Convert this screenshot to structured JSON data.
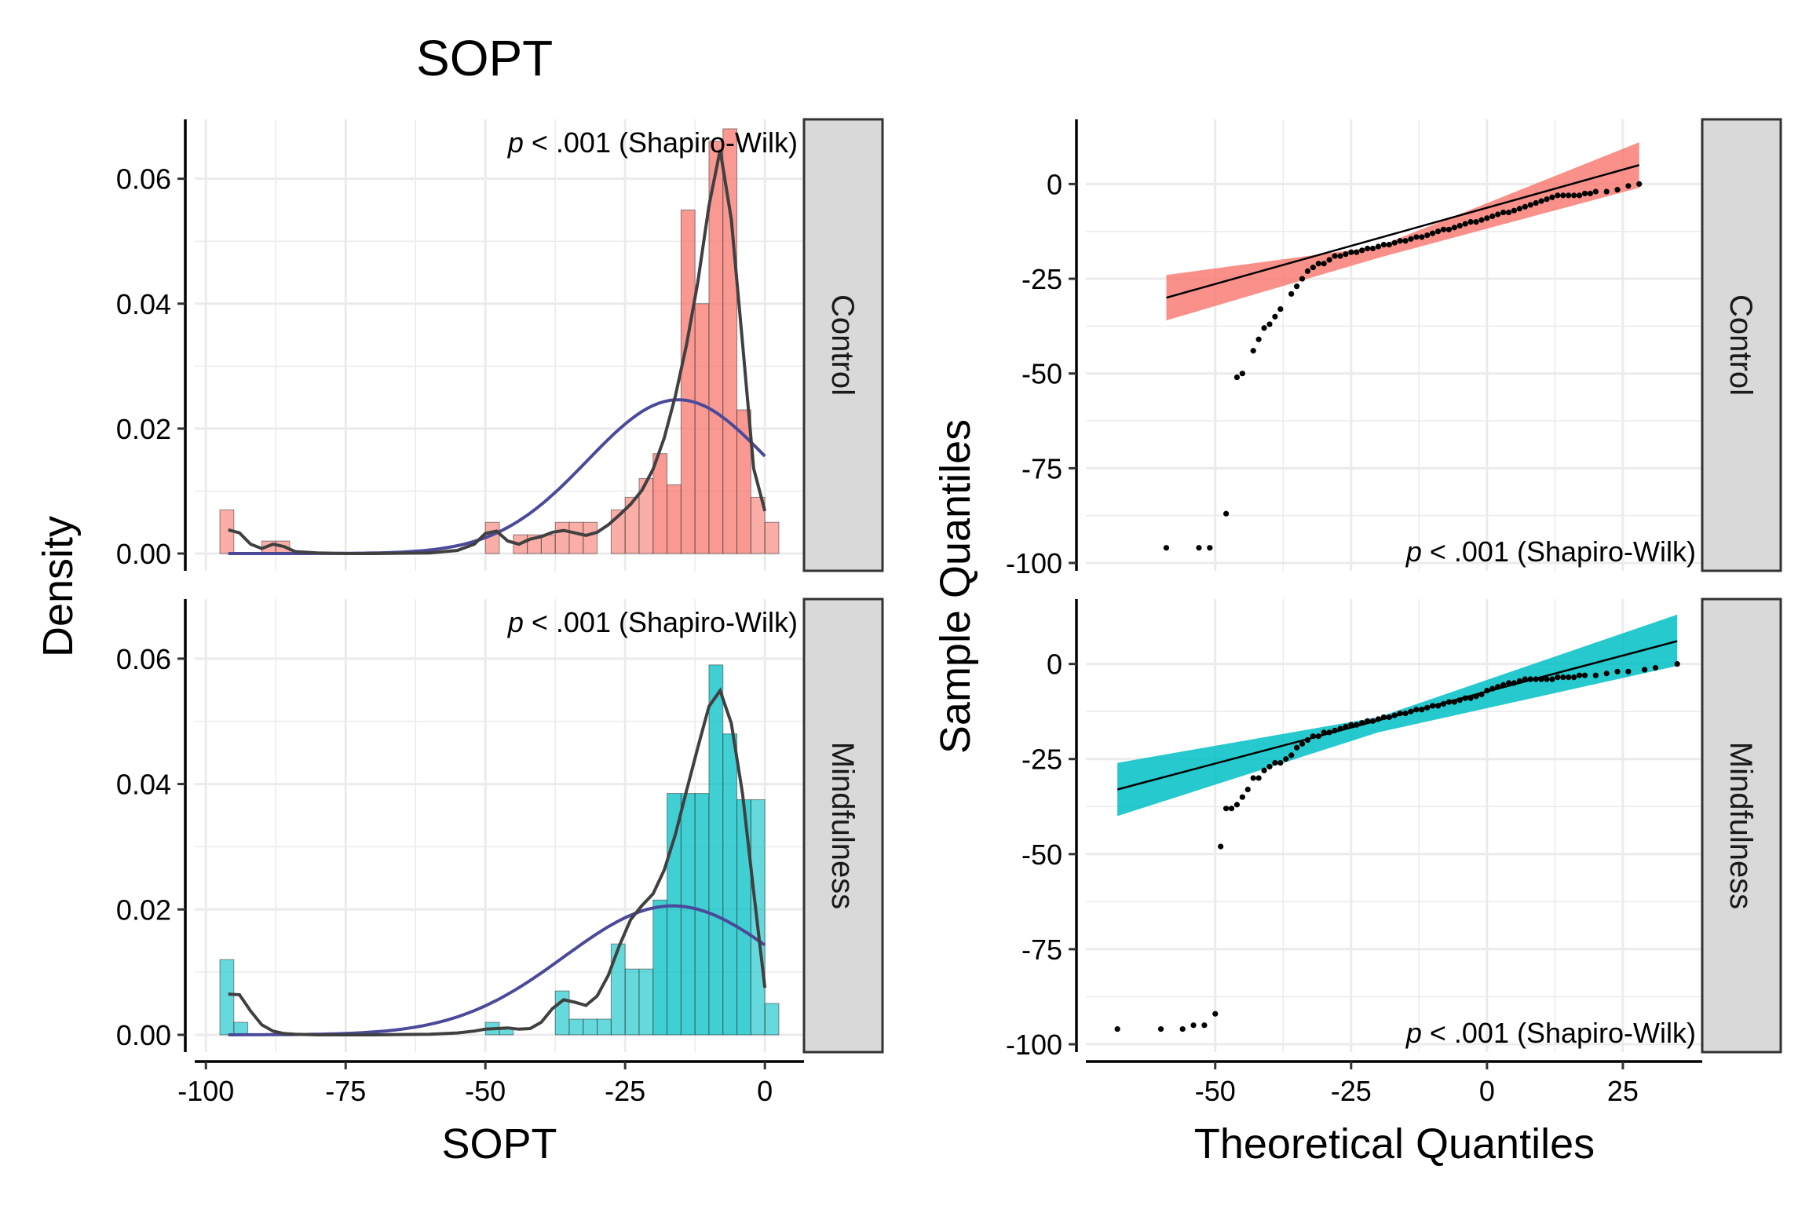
{
  "title": "SOPT",
  "colors": {
    "control": "#F8766D",
    "mindfulness": "#00BFC4",
    "density_curve": "#404040",
    "normal_curve": "#4B4A9A",
    "strip_fill": "#D9D9D9",
    "grid": "#EBEBEB"
  },
  "left": {
    "xlabel": "SOPT",
    "ylabel": "Density",
    "xticks": [
      "-100",
      "-75",
      "-50",
      "-25",
      "0"
    ],
    "yticks": [
      "0.00",
      "0.02",
      "0.04",
      "0.06"
    ]
  },
  "right": {
    "xlabel": "Theoretical Quantiles",
    "ylabel": "Sample Quantiles",
    "xticks": [
      "-50",
      "-25",
      "0",
      "25"
    ],
    "yticks": [
      "-100",
      "-75",
      "-50",
      "-25",
      "0"
    ]
  },
  "annotation": {
    "p_label": "p",
    "rest": " < .001 (Shapiro-Wilk)"
  },
  "chart_data": [
    {
      "type": "histogram",
      "panel": "Control",
      "x_axis": "SOPT",
      "y_axis": "Density",
      "xlim": [
        -100,
        5
      ],
      "ylim": [
        0,
        0.07
      ],
      "bin_width": 2.5,
      "bins": [
        {
          "x": -96.25,
          "density": 0.007
        },
        {
          "x": -88.75,
          "density": 0.002
        },
        {
          "x": -86.25,
          "density": 0.002
        },
        {
          "x": -48.75,
          "density": 0.005
        },
        {
          "x": -43.75,
          "density": 0.003
        },
        {
          "x": -41.25,
          "density": 0.003
        },
        {
          "x": -38.75,
          "density": 0.003
        },
        {
          "x": -36.25,
          "density": 0.005
        },
        {
          "x": -33.75,
          "density": 0.005
        },
        {
          "x": -31.25,
          "density": 0.005
        },
        {
          "x": -26.25,
          "density": 0.007
        },
        {
          "x": -23.75,
          "density": 0.009
        },
        {
          "x": -21.25,
          "density": 0.012
        },
        {
          "x": -18.75,
          "density": 0.016
        },
        {
          "x": -16.25,
          "density": 0.011
        },
        {
          "x": -13.75,
          "density": 0.055
        },
        {
          "x": -11.25,
          "density": 0.04
        },
        {
          "x": -8.75,
          "density": 0.066
        },
        {
          "x": -6.25,
          "density": 0.068
        },
        {
          "x": -3.75,
          "density": 0.023
        },
        {
          "x": -1.25,
          "density": 0.009
        },
        {
          "x": 1.25,
          "density": 0.005
        }
      ],
      "kde": {
        "x": [
          -96,
          -94,
          -92,
          -90,
          -88,
          -86,
          -84,
          -80,
          -75,
          -70,
          -60,
          -55,
          -52,
          -50,
          -48,
          -46,
          -44,
          -42,
          -40,
          -38,
          -36,
          -34,
          -32,
          -30,
          -28,
          -26,
          -24,
          -22,
          -20,
          -18,
          -16,
          -14,
          -12,
          -10,
          -8,
          -6,
          -4,
          -2,
          0
        ],
        "y": [
          0.0038,
          0.0033,
          0.0015,
          0.0008,
          0.0015,
          0.0011,
          0.0003,
          0.0001,
          0.0,
          0.0,
          0.0001,
          0.0005,
          0.0015,
          0.0032,
          0.0036,
          0.002,
          0.0015,
          0.0023,
          0.0027,
          0.0034,
          0.0037,
          0.0033,
          0.0029,
          0.0034,
          0.0046,
          0.0062,
          0.0079,
          0.0101,
          0.0135,
          0.0185,
          0.0253,
          0.0335,
          0.0434,
          0.0557,
          0.0646,
          0.0535,
          0.0337,
          0.0136,
          0.0068
        ]
      },
      "normal_fit": {
        "mean": -15.5,
        "sd": 16.2,
        "range": [
          -96,
          0
        ]
      },
      "annotation": "p < .001 (Shapiro-Wilk)"
    },
    {
      "type": "histogram",
      "panel": "Mindfulness",
      "x_axis": "SOPT",
      "y_axis": "Density",
      "xlim": [
        -100,
        5
      ],
      "ylim": [
        0,
        0.07
      ],
      "bin_width": 2.5,
      "bins": [
        {
          "x": -96.25,
          "density": 0.012
        },
        {
          "x": -93.75,
          "density": 0.002
        },
        {
          "x": -48.75,
          "density": 0.002
        },
        {
          "x": -46.25,
          "density": 0.001
        },
        {
          "x": -36.25,
          "density": 0.007
        },
        {
          "x": -33.75,
          "density": 0.0025
        },
        {
          "x": -31.25,
          "density": 0.0025
        },
        {
          "x": -28.75,
          "density": 0.0025
        },
        {
          "x": -26.25,
          "density": 0.0145
        },
        {
          "x": -23.75,
          "density": 0.0105
        },
        {
          "x": -21.25,
          "density": 0.0105
        },
        {
          "x": -18.75,
          "density": 0.0215
        },
        {
          "x": -16.25,
          "density": 0.0385
        },
        {
          "x": -13.75,
          "density": 0.0385
        },
        {
          "x": -11.25,
          "density": 0.0385
        },
        {
          "x": -8.75,
          "density": 0.059
        },
        {
          "x": -6.25,
          "density": 0.048
        },
        {
          "x": -3.75,
          "density": 0.0375
        },
        {
          "x": -1.25,
          "density": 0.0375
        },
        {
          "x": 1.25,
          "density": 0.005
        }
      ],
      "kde": {
        "x": [
          -96,
          -94,
          -92,
          -90,
          -88,
          -86,
          -84,
          -80,
          -75,
          -70,
          -60,
          -55,
          -52,
          -50,
          -48,
          -46,
          -44,
          -42,
          -40,
          -38,
          -36,
          -34,
          -32,
          -30,
          -28,
          -26,
          -24,
          -22,
          -20,
          -18,
          -16,
          -14,
          -12,
          -10,
          -8,
          -6,
          -4,
          -2,
          0
        ],
        "y": [
          0.0065,
          0.0064,
          0.0038,
          0.0016,
          0.0006,
          0.0002,
          0.0001,
          0.0,
          0.0,
          0.0,
          0.0001,
          0.0003,
          0.0006,
          0.0009,
          0.001,
          0.0011,
          0.0009,
          0.001,
          0.002,
          0.0042,
          0.0056,
          0.0052,
          0.0047,
          0.0062,
          0.0095,
          0.0143,
          0.0184,
          0.0206,
          0.0225,
          0.0263,
          0.032,
          0.039,
          0.0458,
          0.0524,
          0.0549,
          0.0497,
          0.0385,
          0.0228,
          0.0075
        ]
      },
      "normal_fit": {
        "mean": -16.5,
        "sd": 19.4,
        "range": [
          -96,
          0
        ]
      },
      "annotation": "p < .001 (Shapiro-Wilk)"
    },
    {
      "type": "scatter",
      "panel": "Control",
      "x_axis": "Theoretical Quantiles",
      "y_axis": "Sample Quantiles",
      "xlim": [
        -70,
        35
      ],
      "ylim": [
        -100,
        15
      ],
      "reference_line": {
        "x": [
          -59,
          28
        ],
        "y": [
          -30,
          5
        ]
      },
      "band": {
        "x": [
          -59,
          -20,
          28
        ],
        "upper": [
          -24,
          -16.5,
          11
        ],
        "lower": [
          -36,
          -19.5,
          -1
        ]
      },
      "points": [
        [
          -59,
          -96
        ],
        [
          -53,
          -96
        ],
        [
          -51,
          -96
        ],
        [
          -48,
          -87
        ],
        [
          -46,
          -51
        ],
        [
          -45,
          -50
        ],
        [
          -43,
          -44
        ],
        [
          -42,
          -41
        ],
        [
          -41,
          -38
        ],
        [
          -40,
          -37
        ],
        [
          -39,
          -35
        ],
        [
          -38,
          -33
        ],
        [
          -36,
          -29
        ],
        [
          -35,
          -27
        ],
        [
          -34,
          -25
        ],
        [
          -33,
          -23
        ],
        [
          -32,
          -22
        ],
        [
          -31,
          -21
        ],
        [
          -30,
          -21
        ],
        [
          -29,
          -20
        ],
        [
          -28,
          -19
        ],
        [
          -27,
          -19
        ],
        [
          -26,
          -18.5
        ],
        [
          -25,
          -18
        ],
        [
          -24,
          -18
        ],
        [
          -23,
          -17.5
        ],
        [
          -22,
          -17
        ],
        [
          -21,
          -17
        ],
        [
          -20,
          -16.5
        ],
        [
          -19,
          -16
        ],
        [
          -18,
          -16
        ],
        [
          -17,
          -15.5
        ],
        [
          -16,
          -15
        ],
        [
          -15,
          -15
        ],
        [
          -14,
          -14.5
        ],
        [
          -13,
          -14
        ],
        [
          -12,
          -14
        ],
        [
          -11,
          -13.5
        ],
        [
          -10,
          -13
        ],
        [
          -9,
          -12.5
        ],
        [
          -8,
          -12
        ],
        [
          -7,
          -12
        ],
        [
          -6,
          -11.5
        ],
        [
          -5,
          -11
        ],
        [
          -4,
          -10.5
        ],
        [
          -3,
          -10
        ],
        [
          -2,
          -10
        ],
        [
          -1,
          -9.5
        ],
        [
          0,
          -9
        ],
        [
          1,
          -8.5
        ],
        [
          2,
          -8
        ],
        [
          3,
          -7.5
        ],
        [
          4,
          -7.5
        ],
        [
          5,
          -7
        ],
        [
          6,
          -6.5
        ],
        [
          7,
          -6
        ],
        [
          8,
          -5.5
        ],
        [
          9,
          -5
        ],
        [
          10,
          -4.5
        ],
        [
          11,
          -4
        ],
        [
          12,
          -3.5
        ],
        [
          13,
          -3
        ],
        [
          14,
          -3
        ],
        [
          15,
          -3
        ],
        [
          16,
          -3
        ],
        [
          17,
          -3
        ],
        [
          18,
          -2.5
        ],
        [
          19,
          -2.5
        ],
        [
          20,
          -2
        ],
        [
          22,
          -2
        ],
        [
          24,
          -1.5
        ],
        [
          26,
          -0.5
        ],
        [
          28,
          0
        ]
      ],
      "annotation": "p < .001 (Shapiro-Wilk)"
    },
    {
      "type": "scatter",
      "panel": "Mindfulness",
      "x_axis": "Theoretical Quantiles",
      "y_axis": "Sample Quantiles",
      "xlim": [
        -70,
        35
      ],
      "ylim": [
        -100,
        15
      ],
      "reference_line": {
        "x": [
          -68,
          35
        ],
        "y": [
          -33,
          6
        ]
      },
      "band": {
        "x": [
          -68,
          -20,
          35
        ],
        "upper": [
          -26,
          -14,
          13
        ],
        "lower": [
          -40,
          -18,
          -0.5
        ]
      },
      "points": [
        [
          -68,
          -96
        ],
        [
          -60,
          -96
        ],
        [
          -56,
          -96
        ],
        [
          -54,
          -95
        ],
        [
          -52,
          -95
        ],
        [
          -50,
          -92
        ],
        [
          -49,
          -48
        ],
        [
          -48,
          -38
        ],
        [
          -47,
          -38
        ],
        [
          -46,
          -37
        ],
        [
          -45,
          -35
        ],
        [
          -44,
          -33
        ],
        [
          -43,
          -30
        ],
        [
          -42,
          -30
        ],
        [
          -41,
          -28
        ],
        [
          -40,
          -27
        ],
        [
          -39,
          -26
        ],
        [
          -38,
          -26
        ],
        [
          -37,
          -25
        ],
        [
          -36,
          -24
        ],
        [
          -35,
          -22
        ],
        [
          -34,
          -21
        ],
        [
          -33,
          -20
        ],
        [
          -32,
          -19
        ],
        [
          -31,
          -19
        ],
        [
          -30,
          -18
        ],
        [
          -29,
          -18
        ],
        [
          -28,
          -17.5
        ],
        [
          -27,
          -17
        ],
        [
          -26,
          -16.5
        ],
        [
          -25,
          -16
        ],
        [
          -24,
          -16
        ],
        [
          -23,
          -15.5
        ],
        [
          -22,
          -15
        ],
        [
          -21,
          -15
        ],
        [
          -20,
          -14.5
        ],
        [
          -19,
          -14
        ],
        [
          -18,
          -14
        ],
        [
          -17,
          -13.5
        ],
        [
          -16,
          -13
        ],
        [
          -15,
          -13
        ],
        [
          -14,
          -12.5
        ],
        [
          -13,
          -12
        ],
        [
          -12,
          -12
        ],
        [
          -11,
          -11.5
        ],
        [
          -10,
          -11
        ],
        [
          -9,
          -11
        ],
        [
          -8,
          -10.5
        ],
        [
          -7,
          -10
        ],
        [
          -6,
          -10
        ],
        [
          -5,
          -9.5
        ],
        [
          -4,
          -9
        ],
        [
          -3,
          -9
        ],
        [
          -2,
          -8.5
        ],
        [
          -1,
          -8
        ],
        [
          0,
          -7
        ],
        [
          1,
          -6.5
        ],
        [
          2,
          -6
        ],
        [
          3,
          -5.5
        ],
        [
          4,
          -5
        ],
        [
          5,
          -5
        ],
        [
          6,
          -4.5
        ],
        [
          7,
          -4
        ],
        [
          8,
          -4
        ],
        [
          9,
          -4
        ],
        [
          10,
          -4
        ],
        [
          11,
          -4
        ],
        [
          12,
          -4
        ],
        [
          13,
          -3.5
        ],
        [
          14,
          -3.5
        ],
        [
          15,
          -3.5
        ],
        [
          16,
          -3.5
        ],
        [
          17,
          -3
        ],
        [
          18,
          -3
        ],
        [
          20,
          -3
        ],
        [
          22,
          -2.5
        ],
        [
          24,
          -2
        ],
        [
          26,
          -2
        ],
        [
          29,
          -1.5
        ],
        [
          31,
          -1
        ],
        [
          35,
          0
        ]
      ],
      "annotation": "p < .001 (Shapiro-Wilk)"
    }
  ]
}
